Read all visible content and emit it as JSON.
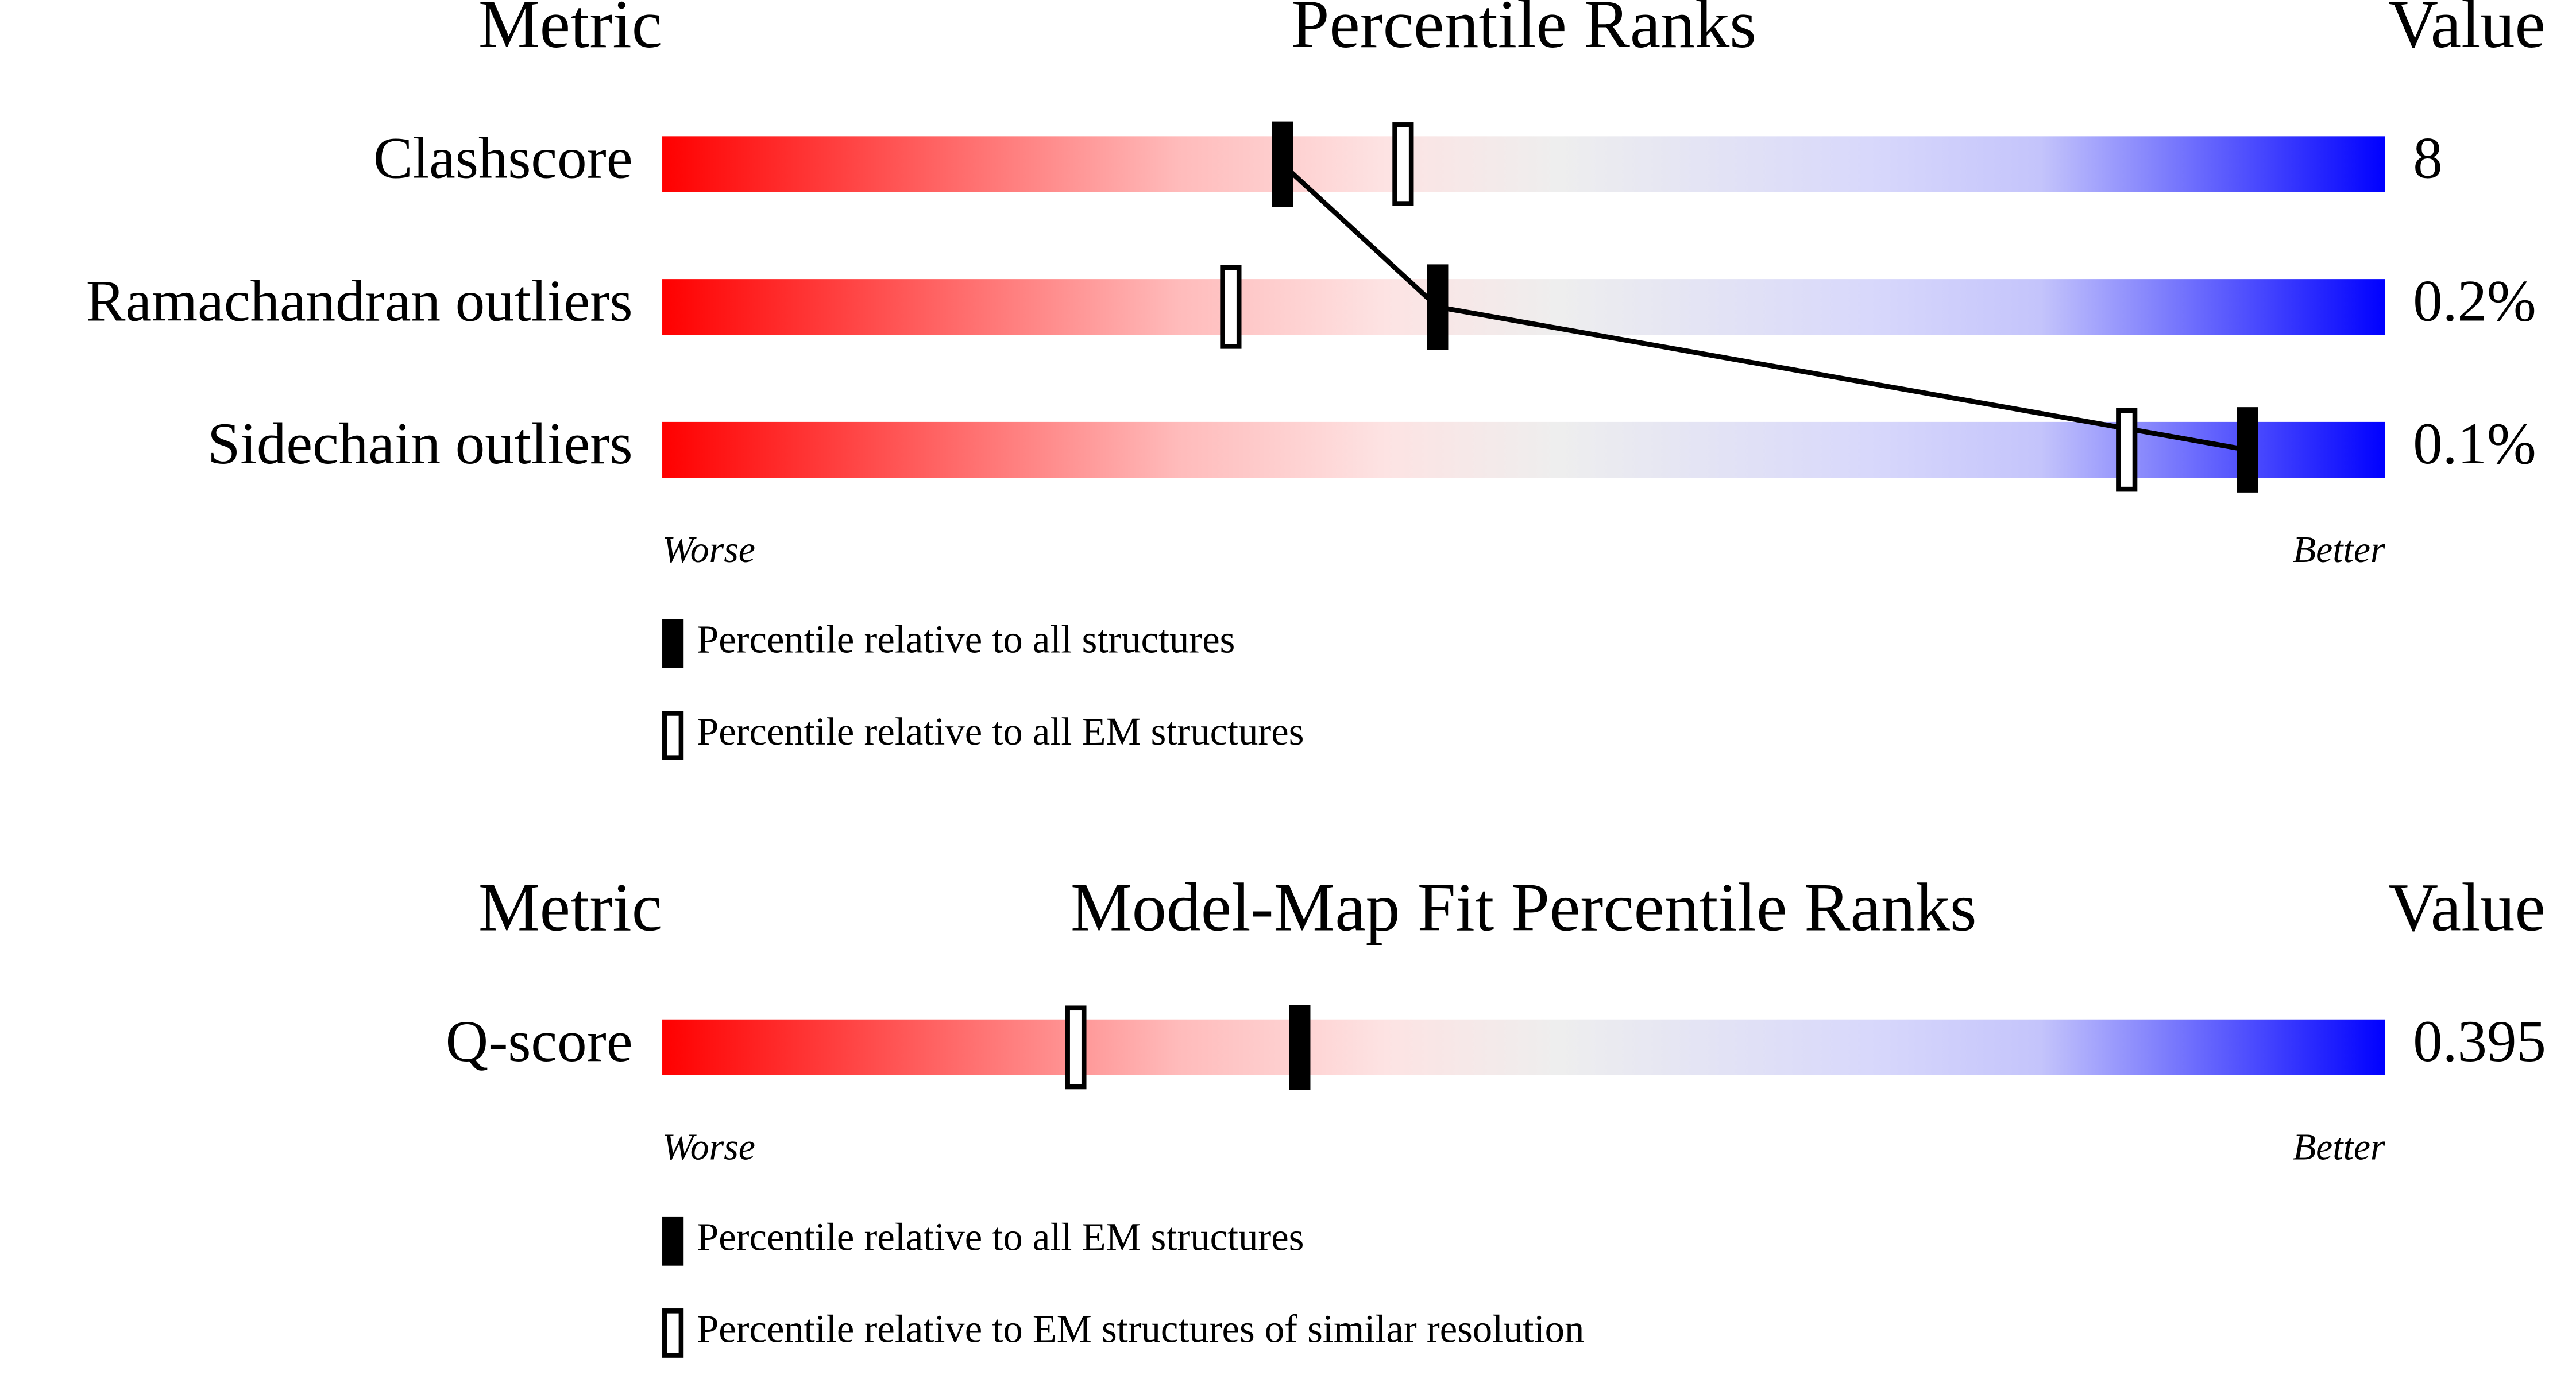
{
  "chart_data": [
    {
      "type": "percentile",
      "headers": {
        "metric": "Metric",
        "title": "Percentile Ranks",
        "value": "Value"
      },
      "categories": [
        "Clashscore",
        "Ramachandran outliers",
        "Sidechain outliers"
      ],
      "metric_values": [
        "8",
        "0.2%",
        "0.1%"
      ],
      "xlim": [
        0,
        100
      ],
      "low_label": "Worse",
      "high_label": "Better",
      "series": [
        {
          "name": "Percentile relative to all structures",
          "style": "filled",
          "color": "#000000",
          "values": [
            36,
            45,
            92
          ]
        },
        {
          "name": "Percentile relative to all EM structures",
          "style": "hollow",
          "color": "#000000",
          "values": [
            43,
            33,
            85
          ]
        }
      ],
      "connect_series": 0
    },
    {
      "type": "percentile",
      "headers": {
        "metric": "Metric",
        "title": "Model-Map Fit Percentile Ranks",
        "value": "Value"
      },
      "categories": [
        "Q-score"
      ],
      "metric_values": [
        "0.395"
      ],
      "xlim": [
        0,
        100
      ],
      "low_label": "Worse",
      "high_label": "Better",
      "series": [
        {
          "name": "Percentile relative to all EM structures",
          "style": "filled",
          "color": "#000000",
          "values": [
            37
          ]
        },
        {
          "name": "Percentile relative to EM structures of similar resolution",
          "style": "hollow",
          "color": "#000000",
          "values": [
            24
          ]
        }
      ]
    }
  ]
}
